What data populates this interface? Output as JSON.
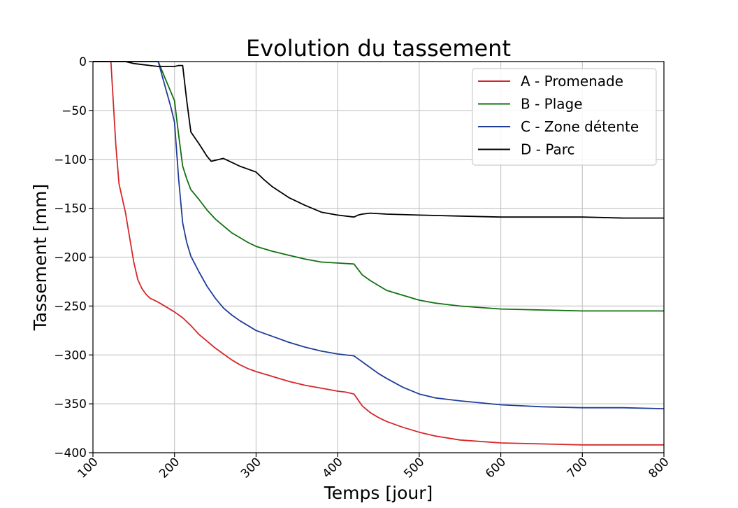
{
  "chart_data": {
    "type": "line",
    "title": "Evolution du tassement",
    "xlabel": "Temps [jour]",
    "ylabel": "Tassement [mm]",
    "xlim": [
      100,
      800
    ],
    "ylim": [
      -400,
      0
    ],
    "xticks": [
      100,
      200,
      300,
      400,
      500,
      600,
      700,
      800
    ],
    "yticks": [
      0,
      -50,
      -100,
      -150,
      -200,
      -250,
      -300,
      -350,
      -400
    ],
    "xtick_labels": [
      "100",
      "200",
      "300",
      "400",
      "500",
      "600",
      "700",
      "800"
    ],
    "ytick_labels": [
      "0",
      "−50",
      "−100",
      "−150",
      "−200",
      "−250",
      "−300",
      "−350",
      "−400"
    ],
    "grid": true,
    "legend_position": "top-right",
    "series": [
      {
        "name": "A - Promenade",
        "color": "#d62728",
        "x": [
          100,
          118,
          122,
          128,
          132,
          140,
          145,
          150,
          155,
          160,
          165,
          170,
          180,
          190,
          200,
          210,
          220,
          230,
          240,
          250,
          260,
          270,
          280,
          290,
          300,
          320,
          340,
          360,
          380,
          400,
          410,
          420,
          430,
          440,
          450,
          460,
          480,
          500,
          520,
          550,
          600,
          650,
          700,
          750,
          800
        ],
        "y": [
          0,
          0,
          0,
          -85,
          -125,
          -155,
          -180,
          -205,
          -223,
          -232,
          -238,
          -242,
          -246,
          -251,
          -256,
          -262,
          -270,
          -279,
          -286,
          -293,
          -299,
          -305,
          -310,
          -314,
          -317,
          -322,
          -327,
          -331,
          -334,
          -337,
          -338,
          -340,
          -352,
          -359,
          -364,
          -368,
          -374,
          -379,
          -383,
          -387,
          -390,
          -391,
          -392,
          -392,
          -392
        ]
      },
      {
        "name": "B - Plage",
        "color": "#107010",
        "x": [
          100,
          180,
          185,
          190,
          200,
          205,
          210,
          215,
          220,
          230,
          240,
          250,
          260,
          270,
          280,
          290,
          300,
          320,
          340,
          360,
          380,
          400,
          420,
          430,
          440,
          450,
          460,
          480,
          500,
          520,
          550,
          600,
          650,
          700,
          750,
          800
        ],
        "y": [
          0,
          0,
          -10,
          -20,
          -40,
          -75,
          -107,
          -120,
          -131,
          -141,
          -152,
          -161,
          -168,
          -175,
          -180,
          -185,
          -189,
          -194,
          -198,
          -202,
          -205,
          -206,
          -207,
          -218,
          -224,
          -229,
          -234,
          -239,
          -244,
          -247,
          -250,
          -253,
          -254,
          -255,
          -255,
          -255
        ]
      },
      {
        "name": "C - Zone détente",
        "color": "#1f3d99",
        "x": [
          100,
          180,
          185,
          190,
          195,
          200,
          205,
          210,
          215,
          220,
          230,
          240,
          250,
          260,
          270,
          280,
          290,
          300,
          320,
          340,
          360,
          380,
          400,
          420,
          430,
          440,
          450,
          460,
          480,
          500,
          520,
          550,
          600,
          650,
          700,
          750,
          800
        ],
        "y": [
          0,
          0,
          -15,
          -30,
          -45,
          -62,
          -120,
          -165,
          -185,
          -199,
          -215,
          -230,
          -242,
          -252,
          -259,
          -265,
          -270,
          -275,
          -281,
          -287,
          -292,
          -296,
          -299,
          -301,
          -307,
          -313,
          -319,
          -324,
          -333,
          -340,
          -344,
          -347,
          -351,
          -353,
          -354,
          -354,
          -355
        ]
      },
      {
        "name": "D - Parc",
        "color": "#000000",
        "x": [
          100,
          140,
          145,
          150,
          160,
          170,
          180,
          190,
          200,
          205,
          210,
          215,
          220,
          230,
          240,
          245,
          250,
          260,
          270,
          280,
          290,
          300,
          310,
          320,
          340,
          360,
          380,
          400,
          420,
          425,
          430,
          440,
          460,
          500,
          550,
          600,
          650,
          700,
          750,
          800
        ],
        "y": [
          0,
          0,
          -1,
          -2,
          -3,
          -4,
          -5,
          -5,
          -5,
          -4,
          -4,
          -40,
          -72,
          -84,
          -97,
          -102,
          -101,
          -99,
          -103,
          -107,
          -110,
          -113,
          -121,
          -128,
          -139,
          -147,
          -154,
          -157,
          -159,
          -157,
          -156,
          -155,
          -156,
          -157,
          -158,
          -159,
          -159,
          -159,
          -160,
          -160
        ]
      }
    ]
  }
}
